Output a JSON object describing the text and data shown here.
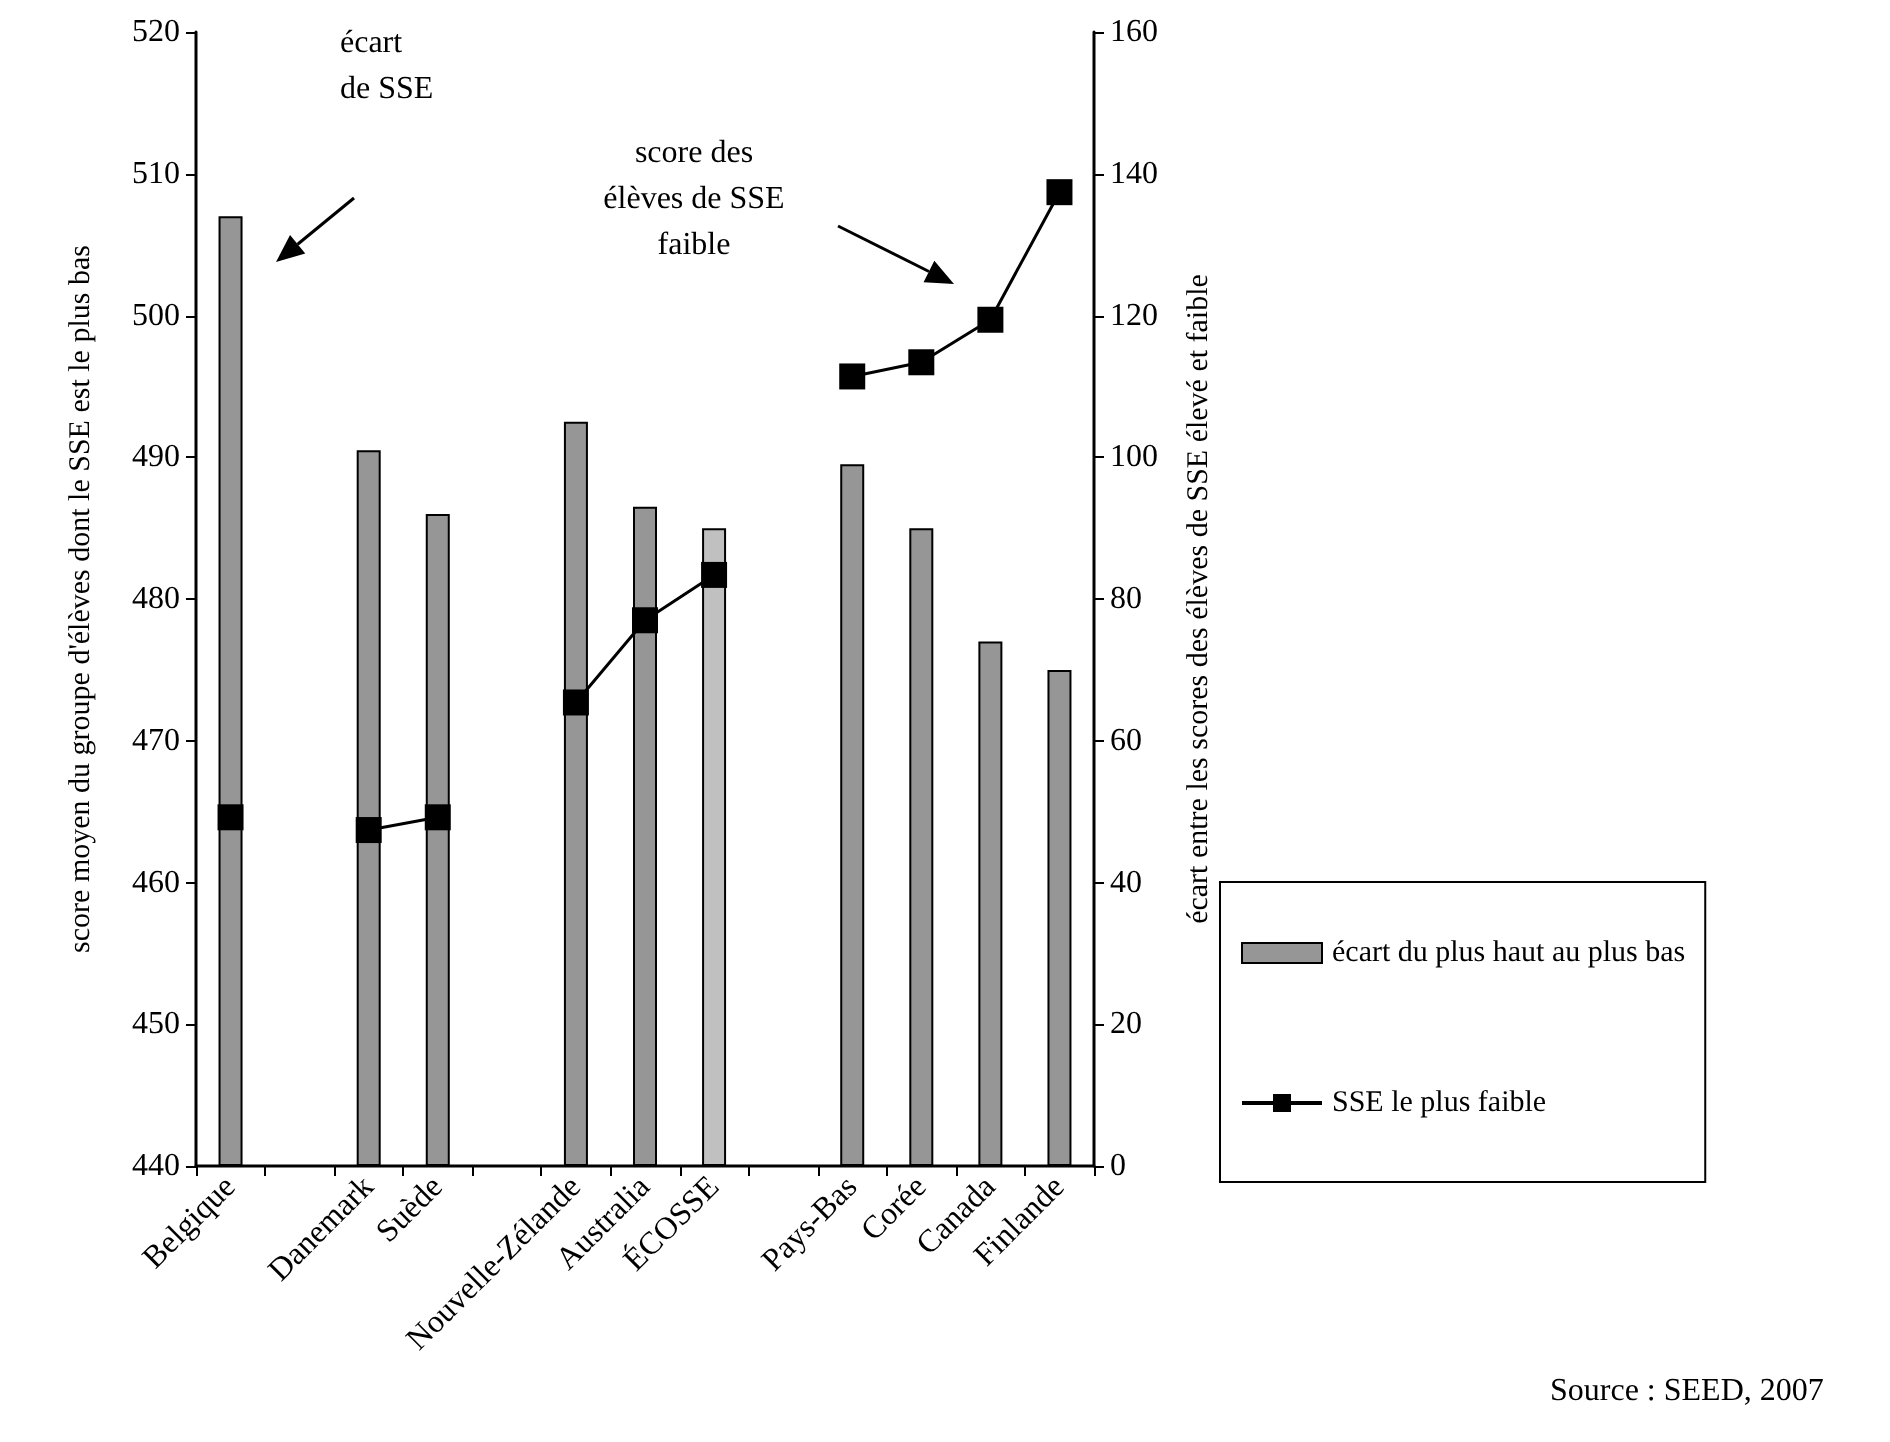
{
  "chart_data": {
    "type": "bar",
    "ylabel": "score moyen du groupe d'élèves dont le SSE est le plus bas",
    "y2label": "écart entre les scores des élèves de SSE élevé et faible",
    "categories": [
      "Belgique",
      null,
      "Danemark",
      "Suède",
      null,
      "Nouvelle-Zélande",
      "Australia",
      "ÉCOSSE",
      null,
      "Pays-Bas",
      "Corée",
      "Canada",
      "Finlande"
    ],
    "series": [
      {
        "name": "écart du plus haut au plus bas",
        "axis": "y2",
        "color": "#969696",
        "colors": [
          "#969696",
          null,
          "#969696",
          "#969696",
          null,
          "#969696",
          "#969696",
          "#c0c0c0",
          null,
          "#969696",
          "#969696",
          "#969696",
          "#969696"
        ],
        "values": [
          134,
          null,
          101,
          92,
          null,
          105,
          93,
          90,
          null,
          99,
          90,
          74,
          70
        ]
      },
      {
        "name": "SSE le plus faible",
        "type": "line",
        "color": "#000000",
        "marker": "square",
        "values": [
          464.6,
          null,
          463.7,
          464.6,
          null,
          472.7,
          478.5,
          481.7,
          null,
          495.7,
          496.7,
          499.7,
          508.7
        ]
      }
    ],
    "ylim": [
      440,
      520
    ],
    "yticks": [
      440,
      450,
      460,
      470,
      480,
      490,
      500,
      510,
      520
    ],
    "y2lim": [
      0,
      160
    ],
    "y2ticks": [
      0,
      20,
      40,
      60,
      80,
      100,
      120,
      140,
      160
    ],
    "grid": false,
    "legend": "right",
    "annotations": [
      "écart\nde SSE",
      "score des\nélèves de SSE\nfaible",
      "Source : SEED, 2007"
    ]
  }
}
